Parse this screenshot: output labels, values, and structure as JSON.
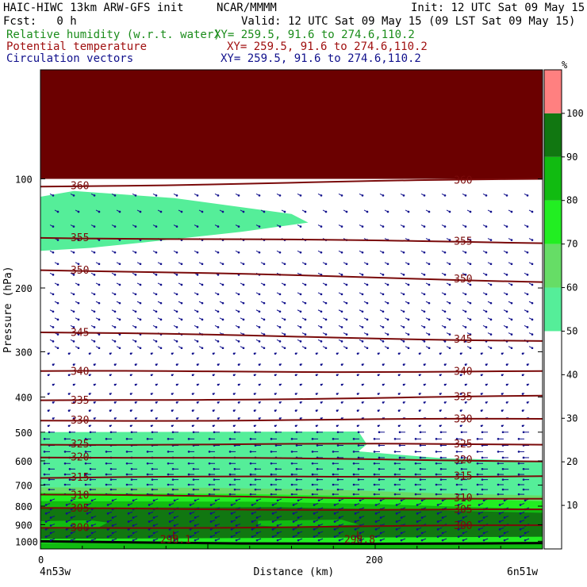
{
  "header": {
    "model": "HAIC-HIWC 13km ARW-GFS init",
    "org": "NCAR/MMMM",
    "init": "Init: 12 UTC Sat 09 May 15",
    "fcst": "Fcst:   0 h",
    "valid": "Valid: 12 UTC Sat 09 May 15 (09 LST Sat 09 May 15)",
    "field1": "Relative humidity (w.r.t. water)",
    "field1_xy": "XY= 259.5, 91.6 to 274.6,110.2",
    "field2": "Potential temperature",
    "field2_xy": "XY= 259.5, 91.6 to 274.6,110.2",
    "field3": "Circulation vectors",
    "field3_xy": "XY= 259.5, 91.6 to 274.6,110.2"
  },
  "colors": {
    "rh_50_60": "#55ee99",
    "rh_60_70": "#66dd66",
    "rh_70_80": "#22ee22",
    "rh_80_90": "#11bb11",
    "rh_90_100": "#117711",
    "rh_100_110": "#ff8080",
    "terrain": "#6b0000",
    "theta": "#7a0a0a",
    "vectors": "#10108c"
  },
  "chart_data": {
    "type": "cross-section",
    "ylabel": "Pressure (hPa)",
    "xlabel": "Distance (km)",
    "x_range": [
      0,
      300
    ],
    "y_range": [
      1050,
      50
    ],
    "y_scale": "log",
    "x_ticks": [
      0,
      200
    ],
    "y_ticks": [
      100,
      200,
      300,
      400,
      500,
      600,
      700,
      800,
      900,
      1000
    ],
    "left_endpoint": "4n53w",
    "right_endpoint": "6n51w",
    "colorbar": {
      "unit": "%",
      "ticks": [
        10,
        20,
        30,
        40,
        50,
        60,
        70,
        80,
        90,
        100
      ],
      "levels": [
        0,
        10,
        20,
        30,
        40,
        50,
        60,
        70,
        80,
        90,
        100,
        110
      ]
    },
    "theta_contours": [
      {
        "label": "360",
        "p_left": 105,
        "p_right": 100
      },
      {
        "label": "355",
        "p_left": 145,
        "p_right": 150
      },
      {
        "label": "350",
        "p_left": 178,
        "p_right": 192
      },
      {
        "label": "345",
        "p_left": 265,
        "p_right": 280
      },
      {
        "label": "340",
        "p_left": 340,
        "p_right": 340
      },
      {
        "label": "335",
        "p_left": 410,
        "p_right": 398
      },
      {
        "label": "330",
        "p_left": 465,
        "p_right": 460
      },
      {
        "label": "325",
        "p_left": 540,
        "p_right": 540
      },
      {
        "label": "320",
        "p_left": 585,
        "p_right": 600
      },
      {
        "label": "315",
        "p_left": 668,
        "p_right": 660
      },
      {
        "label": "310",
        "p_left": 745,
        "p_right": 765
      },
      {
        "label": "305",
        "p_left": 812,
        "p_right": 820
      },
      {
        "label": "300",
        "p_left": 920,
        "p_right": 905
      }
    ],
    "minima": [
      {
        "marker": "L",
        "label": "298.1",
        "x": 80
      },
      {
        "marker": "L",
        "label": "298.8",
        "x": 190
      }
    ]
  }
}
